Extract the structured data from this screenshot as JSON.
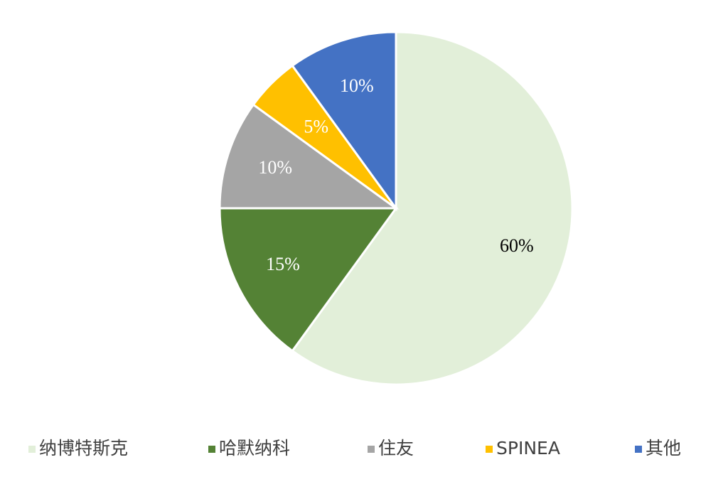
{
  "chart_data": {
    "type": "pie",
    "categories": [
      "纳博特斯克",
      "哈默纳科",
      "住友",
      "SPINEA",
      "其他"
    ],
    "values": [
      60,
      15,
      10,
      5,
      10
    ],
    "value_labels": [
      "60%",
      "15%",
      "10%",
      "5%",
      "10%"
    ],
    "colors": [
      "#e2efd9",
      "#548235",
      "#a5a5a5",
      "#ffc000",
      "#4472c4"
    ],
    "legend": "bottom"
  }
}
